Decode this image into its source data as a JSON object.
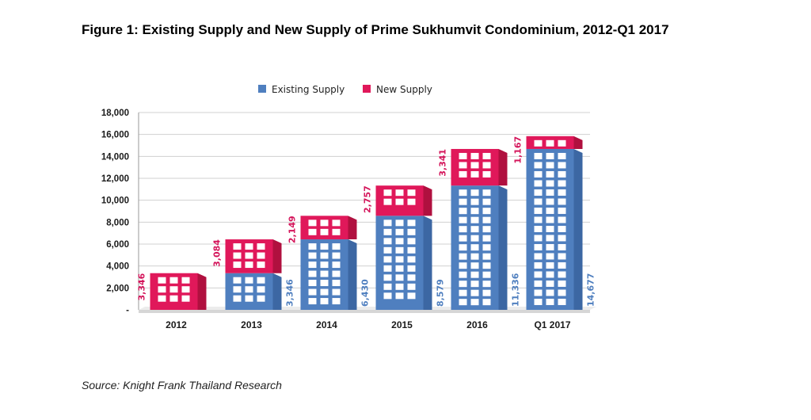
{
  "figure": {
    "title": "Figure 1: Existing Supply and New Supply of Prime Sukhumvit Condominium, 2012-Q1 2017",
    "source": "Source: Knight Frank Thailand Research"
  },
  "colors": {
    "existing": "#4f7fbf",
    "existing_side": "#3c67a3",
    "new": "#e0185a",
    "new_side": "#b0103f",
    "window": "#ffffff",
    "grid": "#d0d0d0",
    "axis": "#999999",
    "floor": "#d6d6d6",
    "existing_label": "#4f7fbf",
    "new_label": "#d4145a"
  },
  "chart_data": {
    "type": "bar",
    "stacked": true,
    "title": "Figure 1: Existing Supply and New Supply of Prime Sukhumvit Condominium, 2012-Q1 2017",
    "categories": [
      "2012",
      "2013",
      "2014",
      "2015",
      "2016",
      "Q1 2017"
    ],
    "series": [
      {
        "name": "Existing Supply",
        "values": [
          0,
          3346,
          6430,
          8579,
          11336,
          14677
        ],
        "labels": [
          "",
          "3,346",
          "6,430",
          "8,579",
          "11,336",
          "14,677"
        ]
      },
      {
        "name": "New Supply",
        "values": [
          3346,
          3084,
          2149,
          2757,
          3341,
          1167
        ],
        "labels": [
          "3,346",
          "3,084",
          "2,149",
          "2,757",
          "3,341",
          "1,167"
        ]
      }
    ],
    "ylim": [
      0,
      18000
    ],
    "yticks": [
      0,
      2000,
      4000,
      6000,
      8000,
      10000,
      12000,
      14000,
      16000,
      18000
    ],
    "ytick_labels": [
      "-",
      "2,000",
      "4,000",
      "6,000",
      "8,000",
      "10,000",
      "12,000",
      "14,000",
      "16,000",
      "18,000"
    ],
    "xlabel": "",
    "ylabel": "",
    "grid": true,
    "legend": [
      "Existing Supply",
      "New Supply"
    ],
    "legend_position": "top-center"
  }
}
